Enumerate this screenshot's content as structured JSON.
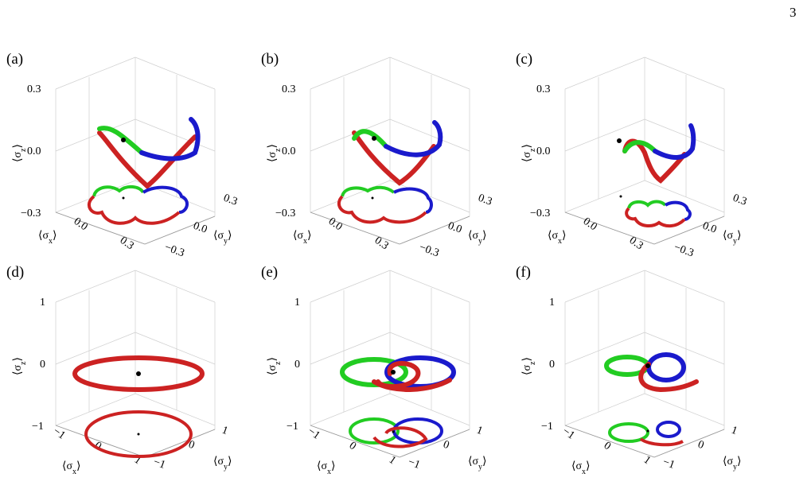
{
  "page_number": "3",
  "colors": {
    "red": "#cc2222",
    "green": "#22cc22",
    "blue": "#1a1acc",
    "grid": "#cfcfcf",
    "axis": "#9a9a9a"
  },
  "axis_symbols": {
    "x": "⟨σ",
    "y": "⟨σ",
    "z": "⟨σ",
    "close": "⟩"
  },
  "axis_subscripts": {
    "x": "x",
    "y": "y",
    "z": "z"
  },
  "panels": [
    {
      "label": "(a)",
      "z_ticks": [
        "0.3",
        "0.0",
        "−0.3"
      ],
      "x_ticks": [
        "0.0",
        "0.3"
      ],
      "y_ticks": [
        "0.3",
        "0.0",
        "−0.3"
      ]
    },
    {
      "label": "(b)",
      "z_ticks": [
        "0.3",
        "0.0",
        "−0.3"
      ],
      "x_ticks": [
        "0.0",
        "0.3"
      ],
      "y_ticks": [
        "0.3",
        "0.0",
        "−0.3"
      ]
    },
    {
      "label": "(c)",
      "z_ticks": [
        "0.3",
        "0.0",
        "−0.3"
      ],
      "x_ticks": [
        "0.0",
        "0.3"
      ],
      "y_ticks": [
        "0.3",
        "0.0",
        "−0.3"
      ]
    },
    {
      "label": "(d)",
      "z_ticks": [
        "1",
        "0",
        "−1"
      ],
      "x_ticks": [
        "−1",
        "0",
        "1"
      ],
      "y_ticks": [
        "1",
        "0",
        "−1"
      ]
    },
    {
      "label": "(e)",
      "z_ticks": [
        "1",
        "0",
        "−1"
      ],
      "x_ticks": [
        "−1",
        "0",
        "1"
      ],
      "y_ticks": [
        "1",
        "0",
        "−1"
      ]
    },
    {
      "label": "(f)",
      "z_ticks": [
        "1",
        "0",
        "−1"
      ],
      "x_ticks": [
        "−1",
        "0",
        "1"
      ],
      "y_ticks": [
        "1",
        "0",
        "−1"
      ]
    }
  ]
}
